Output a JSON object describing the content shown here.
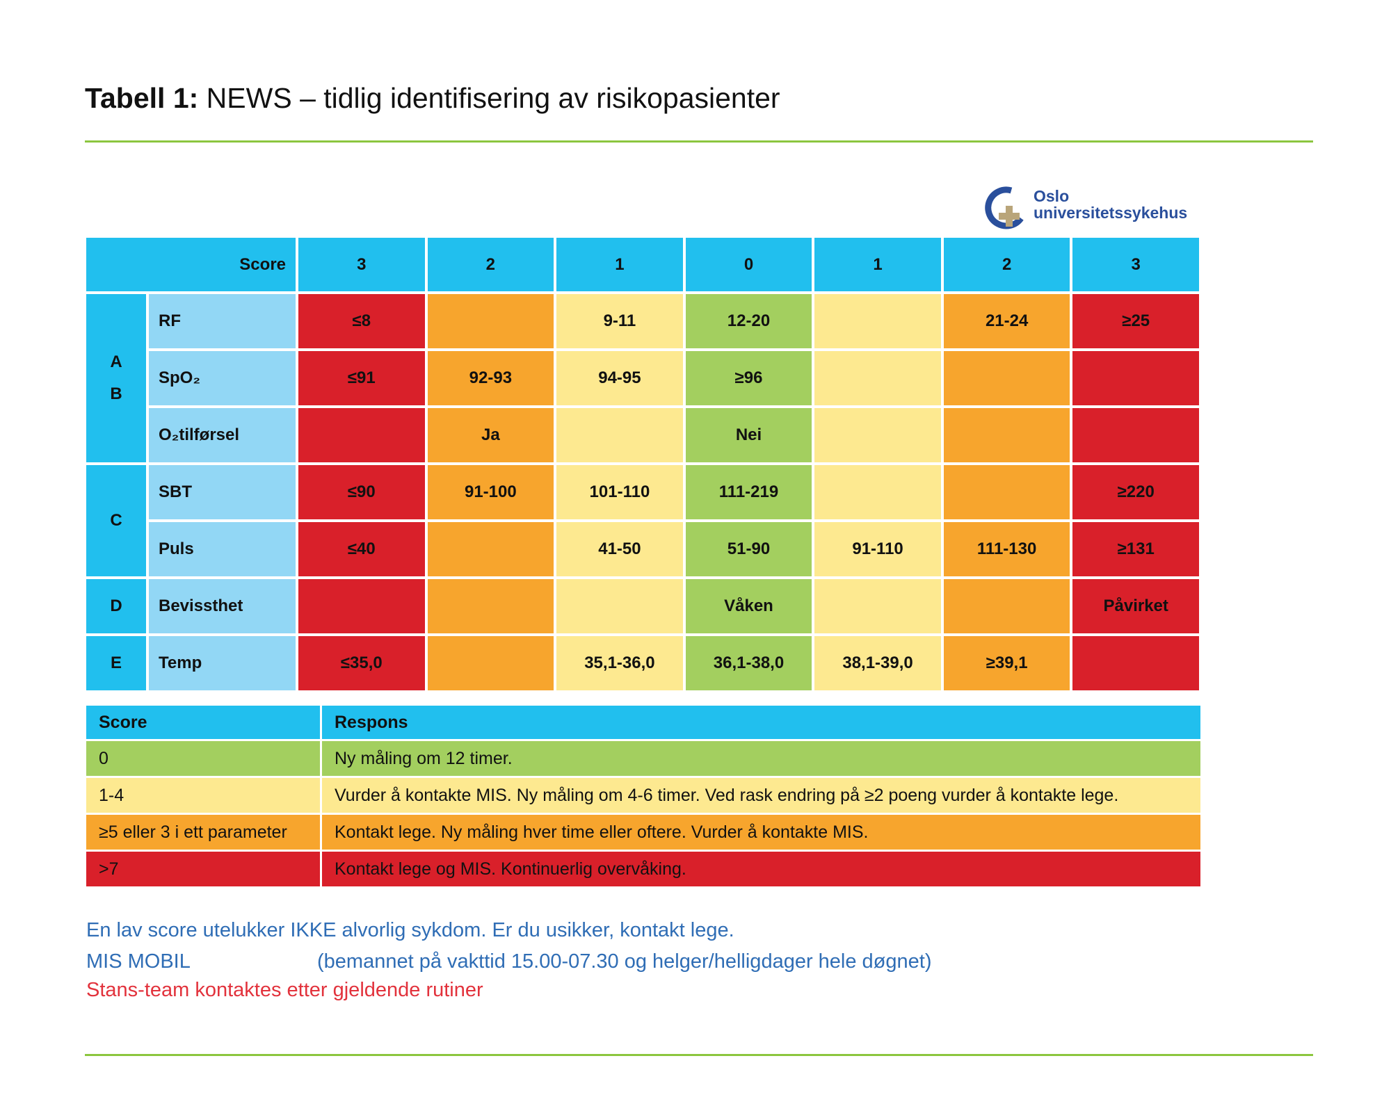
{
  "title": {
    "bold": "Tabell 1:",
    "rest": " NEWS – tidlig identifisering av risikopasienter"
  },
  "logo": {
    "line1": "Oslo",
    "line2": "universitetssykehus"
  },
  "colors": {
    "blue": "#21bfee",
    "light_blue": "#92d7f5",
    "red": "#d9202a",
    "orange": "#f7a52d",
    "yellow": "#fde990",
    "green": "#a3cf5f",
    "rule": "#8cc63f"
  },
  "news_table": {
    "score_label": "Score",
    "score_columns": [
      "3",
      "2",
      "1",
      "0",
      "1",
      "2",
      "3"
    ],
    "column_colors": [
      "red",
      "orange",
      "yellow",
      "green",
      "yellow",
      "orange",
      "red"
    ],
    "groups": [
      {
        "label": "A\nB",
        "rows": 3
      },
      {
        "label": "C",
        "rows": 2
      },
      {
        "label": "D",
        "rows": 1
      },
      {
        "label": "E",
        "rows": 1
      }
    ],
    "rows": [
      {
        "param": "RF",
        "cells": [
          "≤8",
          "",
          "9-11",
          "12-20",
          "",
          "21-24",
          "≥25"
        ]
      },
      {
        "param": "SpO₂",
        "cells": [
          "≤91",
          "92-93",
          "94-95",
          "≥96",
          "",
          "",
          ""
        ]
      },
      {
        "param": "O₂tilførsel",
        "cells": [
          "",
          "Ja",
          "",
          "Nei",
          "",
          "",
          ""
        ]
      },
      {
        "param": "SBT",
        "cells": [
          "≤90",
          "91-100",
          "101-110",
          "111-219",
          "",
          "",
          "≥220"
        ]
      },
      {
        "param": "Puls",
        "cells": [
          "≤40",
          "",
          "41-50",
          "51-90",
          "91-110",
          "111-130",
          "≥131"
        ]
      },
      {
        "param": "Bevissthet",
        "cells": [
          "",
          "",
          "",
          "Våken",
          "",
          "",
          "Påvirket"
        ]
      },
      {
        "param": "Temp",
        "cells": [
          "≤35,0",
          "",
          "35,1-36,0",
          "36,1-38,0",
          "38,1-39,0",
          "≥39,1",
          ""
        ]
      }
    ]
  },
  "response_table": {
    "headers": [
      "Score",
      "Respons"
    ],
    "rows": [
      {
        "score": "0",
        "response": "Ny måling om 12 timer.",
        "color": "green"
      },
      {
        "score": "1-4",
        "response": "Vurder å kontakte MIS. Ny måling om 4-6 timer. Ved rask endring på ≥2 poeng vurder å kontakte lege.",
        "color": "yellow"
      },
      {
        "score": "≥5 eller 3 i ett parameter",
        "response": "Kontakt lege. Ny måling hver time eller oftere. Vurder å kontakte MIS.",
        "color": "orange"
      },
      {
        "score": ">7",
        "response": "Kontakt lege og MIS. Kontinuerlig overvåking.",
        "color": "red"
      }
    ]
  },
  "notes": {
    "line1": "En lav score utelukker IKKE alvorlig sykdom. Er du usikker, kontakt lege.",
    "line2a": "MIS MOBIL",
    "line2b": "(bemannet på vakttid 15.00-07.30 og helger/helligdager hele døgnet)",
    "line3": "Stans-team kontaktes etter gjeldende rutiner"
  }
}
